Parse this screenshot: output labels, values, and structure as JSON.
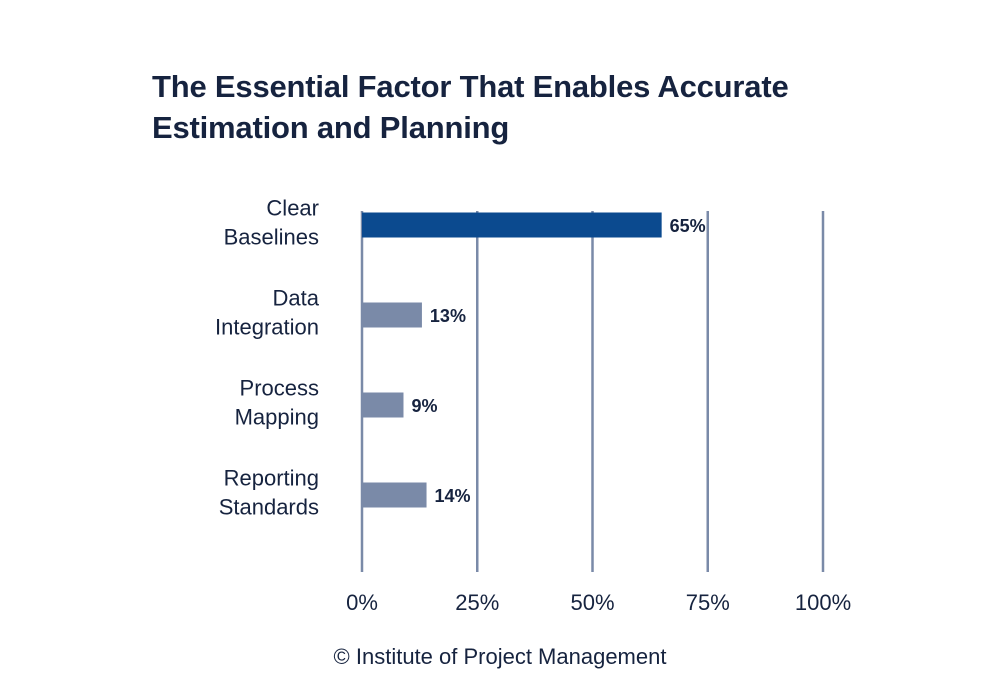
{
  "title": "The Essential Factor That Enables Accurate Estimation and Planning",
  "footer": "© Institute of Project Management",
  "colors": {
    "highlight_bar": "#0b4a8f",
    "bar": "#7a8aa8",
    "gridline": "#7a8aa8",
    "text": "#16233f"
  },
  "chart_data": {
    "type": "bar",
    "orientation": "horizontal",
    "title": "The Essential Factor That Enables Accurate Estimation and Planning",
    "categories": [
      [
        "Clear",
        "Baselines"
      ],
      [
        "Data",
        "Integration"
      ],
      [
        "Process",
        "Mapping"
      ],
      [
        "Reporting",
        "Standards"
      ]
    ],
    "values": [
      65,
      13,
      9,
      14
    ],
    "data_labels": [
      "65%",
      "13%",
      "9%",
      "14%"
    ],
    "highlight_index": 0,
    "xlim": [
      0,
      100
    ],
    "xticks": [
      0,
      25,
      50,
      75,
      100
    ],
    "xtick_labels": [
      "0%",
      "25%",
      "50%",
      "75%",
      "100%"
    ],
    "grid": "vertical",
    "legend": "none"
  }
}
